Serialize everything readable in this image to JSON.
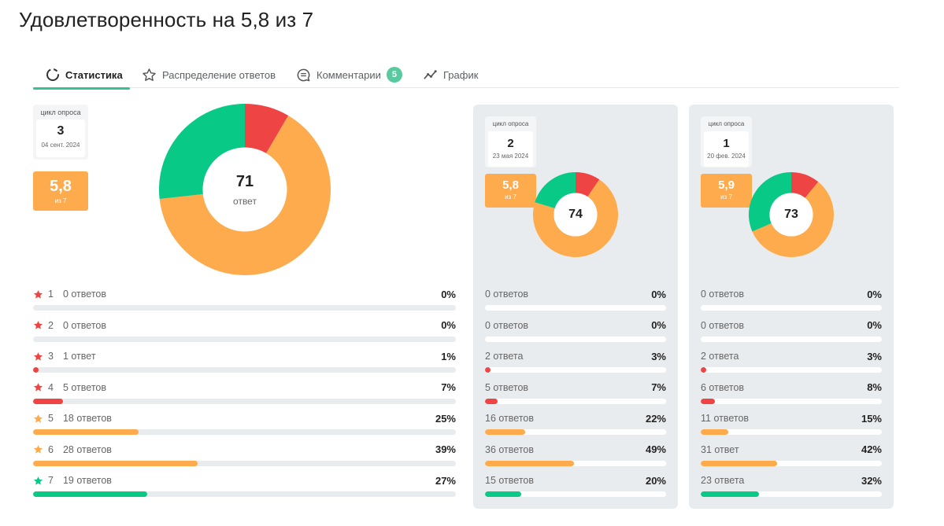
{
  "page": {
    "title": "Удовлетворенность на 5,8 из 7"
  },
  "tabs": [
    {
      "label": "Статистика",
      "icon": "circle-dashed-icon",
      "active": true,
      "badge": null
    },
    {
      "label": "Распределение ответов",
      "icon": "star-outline-icon",
      "active": false,
      "badge": null
    },
    {
      "label": "Комментарии",
      "icon": "comment-icon",
      "active": false,
      "badge": "5"
    },
    {
      "label": "График",
      "icon": "line-chart-icon",
      "active": false,
      "badge": null
    }
  ],
  "colors": {
    "red": "#ef4444",
    "orange": "#fdab4c",
    "green": "#08c985",
    "accent": "#3bbf96"
  },
  "cycles": [
    {
      "cycle_label": "цикл опроса",
      "cycle_number": "3",
      "date": "04 сент. 2024",
      "score": "5,8",
      "score_sub": "из 7",
      "total": "71",
      "total_label": "ответ",
      "donut": {
        "red": 6,
        "orange": 46,
        "green": 19
      },
      "rows": [
        {
          "num": "1",
          "star": "red",
          "count": "0 ответов",
          "pct_label": "0%",
          "pct": 0,
          "color": "red"
        },
        {
          "num": "2",
          "star": "red",
          "count": "0 ответов",
          "pct_label": "0%",
          "pct": 0,
          "color": "red"
        },
        {
          "num": "3",
          "star": "red",
          "count": "1 ответ",
          "pct_label": "1%",
          "pct": 1,
          "color": "red"
        },
        {
          "num": "4",
          "star": "red",
          "count": "5 ответов",
          "pct_label": "7%",
          "pct": 7,
          "color": "red"
        },
        {
          "num": "5",
          "star": "orange",
          "count": "18 ответов",
          "pct_label": "25%",
          "pct": 25,
          "color": "orange"
        },
        {
          "num": "6",
          "star": "orange",
          "count": "28 ответов",
          "pct_label": "39%",
          "pct": 39,
          "color": "orange"
        },
        {
          "num": "7",
          "star": "green",
          "count": "19 ответов",
          "pct_label": "27%",
          "pct": 27,
          "color": "green"
        }
      ]
    },
    {
      "cycle_label": "цикл опроса",
      "cycle_number": "2",
      "date": "23 мая 2024",
      "score": "5,8",
      "score_sub": "из 7",
      "total": "74",
      "donut": {
        "red": 7,
        "orange": 52,
        "green": 15
      },
      "rows": [
        {
          "count": "0 ответов",
          "pct_label": "0%",
          "pct": 0,
          "color": "red"
        },
        {
          "count": "0 ответов",
          "pct_label": "0%",
          "pct": 0,
          "color": "red"
        },
        {
          "count": "2 ответа",
          "pct_label": "3%",
          "pct": 3,
          "color": "red"
        },
        {
          "count": "5 ответов",
          "pct_label": "7%",
          "pct": 7,
          "color": "red"
        },
        {
          "count": "16 ответов",
          "pct_label": "22%",
          "pct": 22,
          "color": "orange"
        },
        {
          "count": "36 ответов",
          "pct_label": "49%",
          "pct": 49,
          "color": "orange"
        },
        {
          "count": "15 ответов",
          "pct_label": "20%",
          "pct": 20,
          "color": "green"
        }
      ]
    },
    {
      "cycle_label": "цикл опроса",
      "cycle_number": "1",
      "date": "20 фев. 2024",
      "score": "5,9",
      "score_sub": "из 7",
      "total": "73",
      "donut": {
        "red": 8,
        "orange": 42,
        "green": 23
      },
      "rows": [
        {
          "count": "0 ответов",
          "pct_label": "0%",
          "pct": 0,
          "color": "red"
        },
        {
          "count": "0 ответов",
          "pct_label": "0%",
          "pct": 0,
          "color": "red"
        },
        {
          "count": "2 ответа",
          "pct_label": "3%",
          "pct": 3,
          "color": "red"
        },
        {
          "count": "6 ответов",
          "pct_label": "8%",
          "pct": 8,
          "color": "red"
        },
        {
          "count": "11 ответов",
          "pct_label": "15%",
          "pct": 15,
          "color": "orange"
        },
        {
          "count": "31 ответ",
          "pct_label": "42%",
          "pct": 42,
          "color": "orange"
        },
        {
          "count": "23 ответа",
          "pct_label": "32%",
          "pct": 32,
          "color": "green"
        }
      ]
    }
  ]
}
